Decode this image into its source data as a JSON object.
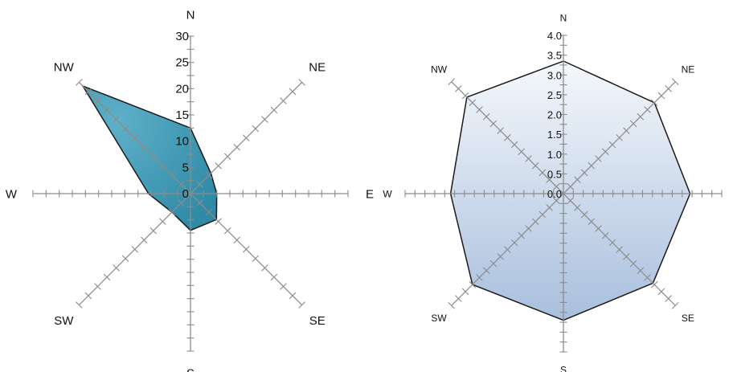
{
  "chart_data": [
    {
      "type": "radar",
      "directions": [
        "N",
        "NE",
        "E",
        "SE",
        "S",
        "SW",
        "W",
        "NW"
      ],
      "values": [
        12.5,
        5.5,
        5,
        7,
        7,
        5,
        8,
        29
      ],
      "radial_ticks": [
        "0",
        "5",
        "10",
        "15",
        "20",
        "25",
        "30"
      ],
      "rmax": 30,
      "tick_step": 2.5,
      "fill_color": "#5fb0c9",
      "fill_color_dark": "#2f8aa6",
      "outline_color": "#1a1a1a",
      "grid": false
    },
    {
      "type": "radar",
      "directions": [
        "N",
        "NE",
        "E",
        "SE",
        "S",
        "SW",
        "W",
        "NW"
      ],
      "values": [
        3.35,
        3.25,
        3.2,
        3.2,
        3.2,
        3.25,
        2.85,
        3.45
      ],
      "radial_ticks": [
        "0.0",
        "0.5",
        "1.0",
        "1.5",
        "2.0",
        "2.5",
        "3.0",
        "3.5",
        "4.0"
      ],
      "rmax": 4.0,
      "tick_step": 0.25,
      "fill_color_top": "#f5f8fc",
      "fill_color_bottom": "#a9bfdd",
      "outline_color": "#1a1a1a",
      "grid": false
    }
  ]
}
